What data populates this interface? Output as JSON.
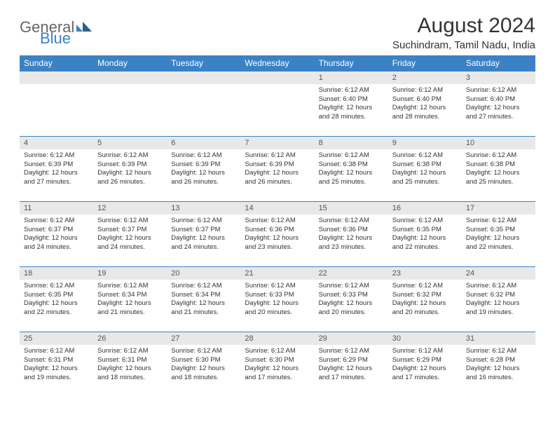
{
  "logo": {
    "word1": "General",
    "word2": "Blue"
  },
  "title": "August 2024",
  "subtitle": "Suchindram, Tamil Nadu, India",
  "colors": {
    "header_bg": "#3b82c4",
    "header_text": "#ffffff",
    "daynum_bg": "#e8e8e8",
    "row_border": "#3b82c4",
    "text": "#333333"
  },
  "weekdays": [
    "Sunday",
    "Monday",
    "Tuesday",
    "Wednesday",
    "Thursday",
    "Friday",
    "Saturday"
  ],
  "weeks": [
    [
      {
        "day": "",
        "sunrise": "",
        "sunset": "",
        "daylight": ""
      },
      {
        "day": "",
        "sunrise": "",
        "sunset": "",
        "daylight": ""
      },
      {
        "day": "",
        "sunrise": "",
        "sunset": "",
        "daylight": ""
      },
      {
        "day": "",
        "sunrise": "",
        "sunset": "",
        "daylight": ""
      },
      {
        "day": "1",
        "sunrise": "Sunrise: 6:12 AM",
        "sunset": "Sunset: 6:40 PM",
        "daylight": "Daylight: 12 hours and 28 minutes."
      },
      {
        "day": "2",
        "sunrise": "Sunrise: 6:12 AM",
        "sunset": "Sunset: 6:40 PM",
        "daylight": "Daylight: 12 hours and 28 minutes."
      },
      {
        "day": "3",
        "sunrise": "Sunrise: 6:12 AM",
        "sunset": "Sunset: 6:40 PM",
        "daylight": "Daylight: 12 hours and 27 minutes."
      }
    ],
    [
      {
        "day": "4",
        "sunrise": "Sunrise: 6:12 AM",
        "sunset": "Sunset: 6:39 PM",
        "daylight": "Daylight: 12 hours and 27 minutes."
      },
      {
        "day": "5",
        "sunrise": "Sunrise: 6:12 AM",
        "sunset": "Sunset: 6:39 PM",
        "daylight": "Daylight: 12 hours and 26 minutes."
      },
      {
        "day": "6",
        "sunrise": "Sunrise: 6:12 AM",
        "sunset": "Sunset: 6:39 PM",
        "daylight": "Daylight: 12 hours and 26 minutes."
      },
      {
        "day": "7",
        "sunrise": "Sunrise: 6:12 AM",
        "sunset": "Sunset: 6:39 PM",
        "daylight": "Daylight: 12 hours and 26 minutes."
      },
      {
        "day": "8",
        "sunrise": "Sunrise: 6:12 AM",
        "sunset": "Sunset: 6:38 PM",
        "daylight": "Daylight: 12 hours and 25 minutes."
      },
      {
        "day": "9",
        "sunrise": "Sunrise: 6:12 AM",
        "sunset": "Sunset: 6:38 PM",
        "daylight": "Daylight: 12 hours and 25 minutes."
      },
      {
        "day": "10",
        "sunrise": "Sunrise: 6:12 AM",
        "sunset": "Sunset: 6:38 PM",
        "daylight": "Daylight: 12 hours and 25 minutes."
      }
    ],
    [
      {
        "day": "11",
        "sunrise": "Sunrise: 6:12 AM",
        "sunset": "Sunset: 6:37 PM",
        "daylight": "Daylight: 12 hours and 24 minutes."
      },
      {
        "day": "12",
        "sunrise": "Sunrise: 6:12 AM",
        "sunset": "Sunset: 6:37 PM",
        "daylight": "Daylight: 12 hours and 24 minutes."
      },
      {
        "day": "13",
        "sunrise": "Sunrise: 6:12 AM",
        "sunset": "Sunset: 6:37 PM",
        "daylight": "Daylight: 12 hours and 24 minutes."
      },
      {
        "day": "14",
        "sunrise": "Sunrise: 6:12 AM",
        "sunset": "Sunset: 6:36 PM",
        "daylight": "Daylight: 12 hours and 23 minutes."
      },
      {
        "day": "15",
        "sunrise": "Sunrise: 6:12 AM",
        "sunset": "Sunset: 6:36 PM",
        "daylight": "Daylight: 12 hours and 23 minutes."
      },
      {
        "day": "16",
        "sunrise": "Sunrise: 6:12 AM",
        "sunset": "Sunset: 6:35 PM",
        "daylight": "Daylight: 12 hours and 22 minutes."
      },
      {
        "day": "17",
        "sunrise": "Sunrise: 6:12 AM",
        "sunset": "Sunset: 6:35 PM",
        "daylight": "Daylight: 12 hours and 22 minutes."
      }
    ],
    [
      {
        "day": "18",
        "sunrise": "Sunrise: 6:12 AM",
        "sunset": "Sunset: 6:35 PM",
        "daylight": "Daylight: 12 hours and 22 minutes."
      },
      {
        "day": "19",
        "sunrise": "Sunrise: 6:12 AM",
        "sunset": "Sunset: 6:34 PM",
        "daylight": "Daylight: 12 hours and 21 minutes."
      },
      {
        "day": "20",
        "sunrise": "Sunrise: 6:12 AM",
        "sunset": "Sunset: 6:34 PM",
        "daylight": "Daylight: 12 hours and 21 minutes."
      },
      {
        "day": "21",
        "sunrise": "Sunrise: 6:12 AM",
        "sunset": "Sunset: 6:33 PM",
        "daylight": "Daylight: 12 hours and 20 minutes."
      },
      {
        "day": "22",
        "sunrise": "Sunrise: 6:12 AM",
        "sunset": "Sunset: 6:33 PM",
        "daylight": "Daylight: 12 hours and 20 minutes."
      },
      {
        "day": "23",
        "sunrise": "Sunrise: 6:12 AM",
        "sunset": "Sunset: 6:32 PM",
        "daylight": "Daylight: 12 hours and 20 minutes."
      },
      {
        "day": "24",
        "sunrise": "Sunrise: 6:12 AM",
        "sunset": "Sunset: 6:32 PM",
        "daylight": "Daylight: 12 hours and 19 minutes."
      }
    ],
    [
      {
        "day": "25",
        "sunrise": "Sunrise: 6:12 AM",
        "sunset": "Sunset: 6:31 PM",
        "daylight": "Daylight: 12 hours and 19 minutes."
      },
      {
        "day": "26",
        "sunrise": "Sunrise: 6:12 AM",
        "sunset": "Sunset: 6:31 PM",
        "daylight": "Daylight: 12 hours and 18 minutes."
      },
      {
        "day": "27",
        "sunrise": "Sunrise: 6:12 AM",
        "sunset": "Sunset: 6:30 PM",
        "daylight": "Daylight: 12 hours and 18 minutes."
      },
      {
        "day": "28",
        "sunrise": "Sunrise: 6:12 AM",
        "sunset": "Sunset: 6:30 PM",
        "daylight": "Daylight: 12 hours and 17 minutes."
      },
      {
        "day": "29",
        "sunrise": "Sunrise: 6:12 AM",
        "sunset": "Sunset: 6:29 PM",
        "daylight": "Daylight: 12 hours and 17 minutes."
      },
      {
        "day": "30",
        "sunrise": "Sunrise: 6:12 AM",
        "sunset": "Sunset: 6:29 PM",
        "daylight": "Daylight: 12 hours and 17 minutes."
      },
      {
        "day": "31",
        "sunrise": "Sunrise: 6:12 AM",
        "sunset": "Sunset: 6:28 PM",
        "daylight": "Daylight: 12 hours and 16 minutes."
      }
    ]
  ]
}
